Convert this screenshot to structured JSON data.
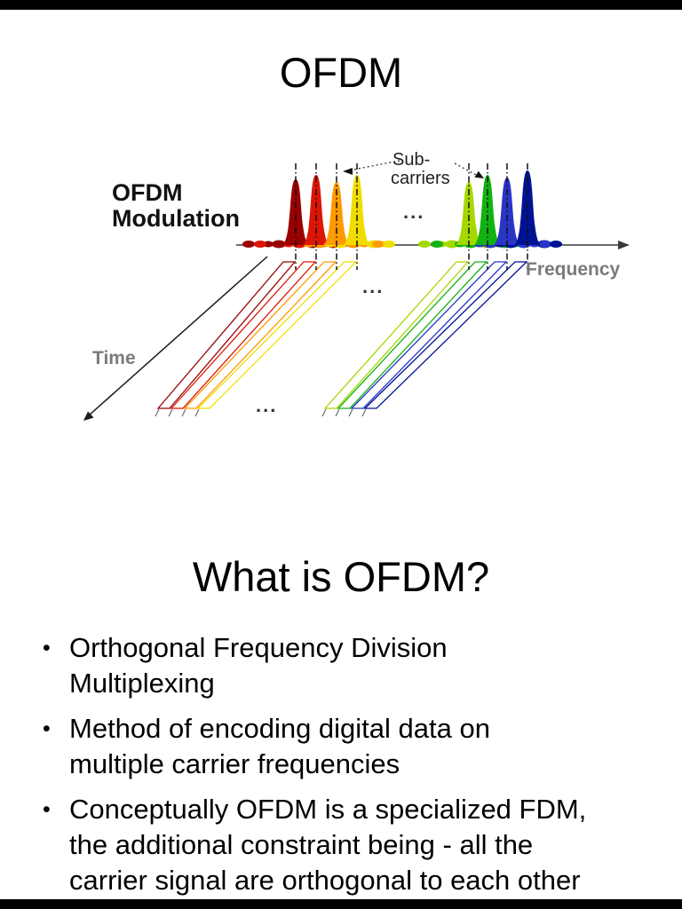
{
  "page": {
    "background": "#ffffff",
    "letterbox_color": "#000000"
  },
  "slide1": {
    "title": "OFDM",
    "diagram": {
      "label_modulation": [
        "OFDM",
        "Modulation"
      ],
      "label_subcarriers": [
        "Sub-",
        "carriers"
      ],
      "label_frequency": "Frequency",
      "label_time": "Time",
      "ellipsis": "...",
      "subcarrier_colors": [
        "#990000",
        "#dd1505",
        "#ff9a00",
        "#f0dd00",
        "#a6d800",
        "#12b212",
        "#2a35c8",
        "#001294"
      ],
      "axis_color": "#3a3a3a",
      "gray_label_color": "#7a7a7a",
      "dash_line_color": "#111111"
    }
  },
  "slide2": {
    "title": "What is OFDM?",
    "bullet_char": "•",
    "bullets": [
      "Orthogonal Frequency Division Multiplexing",
      "Method of encoding digital data on multiple carrier frequencies",
      "Conceptually OFDM is a specialized FDM, the additional constraint being - all the carrier signal are orthogonal to each other"
    ]
  }
}
